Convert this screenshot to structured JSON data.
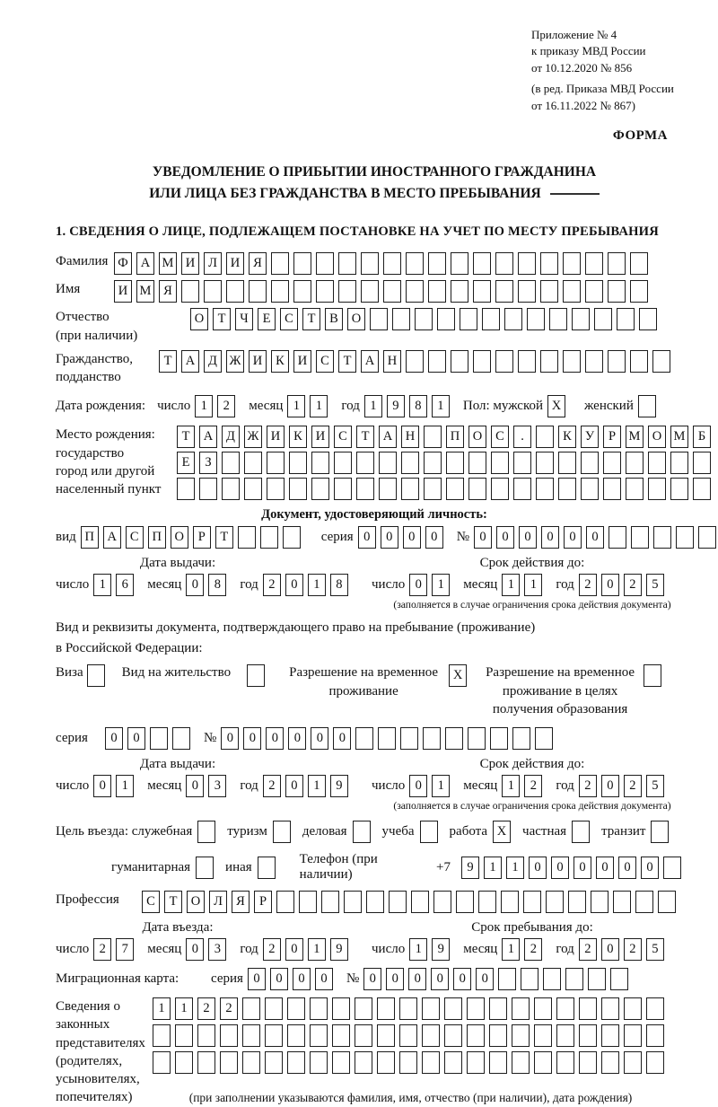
{
  "appendix": {
    "line1": "Приложение № 4",
    "line2": "к приказу МВД России",
    "line3": "от 10.12.2020 № 856",
    "line4": "(в ред. Приказа МВД России",
    "line5": "от 16.11.2022 № 867)",
    "form_label": "ФОРМА"
  },
  "title": {
    "line1": "УВЕДОМЛЕНИЕ О ПРИБЫТИИ ИНОСТРАННОГО ГРАЖДАНИНА",
    "line2": "ИЛИ ЛИЦА БЕЗ ГРАЖДАНСТВА В МЕСТО ПРЕБЫВАНИЯ"
  },
  "section1_title": "1. СВЕДЕНИЯ О ЛИЦЕ, ПОДЛЕЖАЩЕМ ПОСТАНОВКЕ НА УЧЕТ ПО МЕСТУ ПРЕБЫВАНИЯ",
  "labels": {
    "surname": "Фамилия",
    "name": "Имя",
    "patronymic1": "Отчество",
    "patronymic2": "(при наличии)",
    "citizenship1": "Гражданство,",
    "citizenship2": "подданство",
    "birth_date": "Дата рождения:",
    "day": "число",
    "month": "месяц",
    "year": "год",
    "sex": "Пол: мужской",
    "female": "женский",
    "birth_place1": "Место рождения:",
    "birth_place2": "государство",
    "birth_place3": "город или другой",
    "birth_place4": "населенный пункт",
    "id_doc_title": "Документ, удостоверяющий личность:",
    "kind": "вид",
    "series": "серия",
    "number": "№",
    "issue_date": "Дата выдачи:",
    "valid_until": "Срок действия до:",
    "valid_note": "(заполняется в случае ограничения срока действия документа)",
    "residence_doc1": "Вид и реквизиты документа, подтверждающего право на пребывание (проживание)",
    "residence_doc2": "в Российской Федерации:",
    "visa": "Виза",
    "residence_permit": "Вид на жительство",
    "temp_res1": "Разрешение на временное",
    "temp_res2": "проживание",
    "temp_res_edu1": "Разрешение на временное",
    "temp_res_edu2": "проживание в целях",
    "temp_res_edu3": "получения образования",
    "purpose": "Цель въезда: служебная",
    "tourism": "туризм",
    "business": "деловая",
    "study": "учеба",
    "work": "работа",
    "private": "частная",
    "transit": "транзит",
    "humanitarian": "гуманитарная",
    "other": "иная",
    "phone": "Телефон (при наличии)",
    "phone_prefix": "+7",
    "profession": "Профессия",
    "entry_date": "Дата въезда:",
    "stay_until": "Срок пребывания до:",
    "migration_card": "Миграционная карта:",
    "legal1": "Сведения о",
    "legal2": "законных",
    "legal3": "представителях",
    "legal4": "(родителях,",
    "legal5": "усыновителях,",
    "legal6": "попечителях)",
    "legal_note": "(при заполнении указываются фамилия, имя, отчество (при наличии), дата рождения)"
  },
  "cells": {
    "surname": {
      "v": "ФАМИЛИЯ",
      "n": 24
    },
    "name": {
      "v": "ИМЯ",
      "n": 24
    },
    "patronymic": {
      "v": "ОТЧЕСТВО",
      "n": 21
    },
    "citizenship": {
      "v": "ТАДЖИКИСТАН",
      "n": 23
    },
    "birth_day": {
      "v": "12",
      "n": 2
    },
    "birth_month": {
      "v": "11",
      "n": 2
    },
    "birth_year": {
      "v": "1981",
      "n": 4
    },
    "sex_male": {
      "v": "X",
      "n": 1
    },
    "sex_female": {
      "v": "",
      "n": 1
    },
    "birth_place_row1": {
      "v": "ТАДЖИКИСТАН ПОС. КУРМОМБ",
      "n": 24
    },
    "birth_place_row2": {
      "v": "ЕЗ",
      "n": 24
    },
    "birth_place_row3": {
      "v": "",
      "n": 24
    },
    "id_kind": {
      "v": "ПАСПОРТ",
      "n": 10
    },
    "id_series": {
      "v": "0000",
      "n": 4
    },
    "id_number": {
      "v": "000000",
      "n": 11
    },
    "id_issue_day": {
      "v": "16",
      "n": 2
    },
    "id_issue_month": {
      "v": "08",
      "n": 2
    },
    "id_issue_year": {
      "v": "2018",
      "n": 4
    },
    "id_valid_day": {
      "v": "01",
      "n": 2
    },
    "id_valid_month": {
      "v": "11",
      "n": 2
    },
    "id_valid_year": {
      "v": "2025",
      "n": 4
    },
    "visa_cb": {
      "v": "",
      "n": 1
    },
    "residence_permit_cb": {
      "v": "",
      "n": 1
    },
    "temp_res_cb": {
      "v": "X",
      "n": 1
    },
    "temp_res_edu_cb": {
      "v": "",
      "n": 1
    },
    "res_series": {
      "v": "00",
      "n": 4
    },
    "res_number": {
      "v": "000000",
      "n": 15
    },
    "res_issue_day": {
      "v": "01",
      "n": 2
    },
    "res_issue_month": {
      "v": "03",
      "n": 2
    },
    "res_issue_year": {
      "v": "2019",
      "n": 4
    },
    "res_valid_day": {
      "v": "01",
      "n": 2
    },
    "res_valid_month": {
      "v": "12",
      "n": 2
    },
    "res_valid_year": {
      "v": "2025",
      "n": 4
    },
    "purpose_official": {
      "v": "",
      "n": 1
    },
    "purpose_tourism": {
      "v": "",
      "n": 1
    },
    "purpose_business": {
      "v": "",
      "n": 1
    },
    "purpose_study": {
      "v": "",
      "n": 1
    },
    "purpose_work": {
      "v": "X",
      "n": 1
    },
    "purpose_private": {
      "v": "",
      "n": 1
    },
    "purpose_transit": {
      "v": "",
      "n": 1
    },
    "purpose_humanitarian": {
      "v": "",
      "n": 1
    },
    "purpose_other": {
      "v": "",
      "n": 1
    },
    "phone_digits": {
      "v": "911000000",
      "n": 10
    },
    "profession": {
      "v": "СТОЛЯР",
      "n": 24
    },
    "entry_day": {
      "v": "27",
      "n": 2
    },
    "entry_month": {
      "v": "03",
      "n": 2
    },
    "entry_year": {
      "v": "2019",
      "n": 4
    },
    "stay_day": {
      "v": "19",
      "n": 2
    },
    "stay_month": {
      "v": "12",
      "n": 2
    },
    "stay_year": {
      "v": "2025",
      "n": 4
    },
    "mig_series": {
      "v": "0000",
      "n": 4
    },
    "mig_number": {
      "v": "000000",
      "n": 12
    },
    "legal_row1": {
      "v": "1122",
      "n": 23
    },
    "legal_row2": {
      "v": "",
      "n": 23
    },
    "legal_row3": {
      "v": "",
      "n": 23
    }
  }
}
